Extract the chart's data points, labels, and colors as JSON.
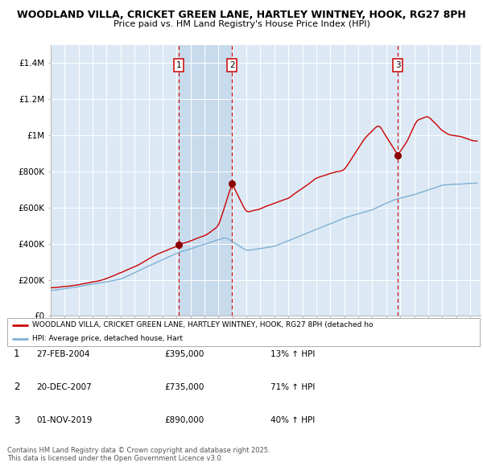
{
  "title_line1": "WOODLAND VILLA, CRICKET GREEN LANE, HARTLEY WINTNEY, HOOK, RG27 8PH",
  "title_line2": "Price paid vs. HM Land Registry's House Price Index (HPI)",
  "background_color": "#ffffff",
  "plot_bg_color": "#dce9f5",
  "grid_color": "#ffffff",
  "red_line_color": "#cc0000",
  "blue_line_color": "#7eb0d4",
  "sale_marker_color": "#8b0000",
  "sale_dashed_color": "#cc0000",
  "ylim": [
    0,
    1500000
  ],
  "yticks": [
    0,
    200000,
    400000,
    600000,
    800000,
    1000000,
    1200000,
    1400000
  ],
  "ytick_labels": [
    "£0",
    "£200K",
    "£400K",
    "£600K",
    "£800K",
    "£1M",
    "£1.2M",
    "£1.4M"
  ],
  "year_start": 1995,
  "year_end": 2025,
  "sale1_year": 2004.15,
  "sale1_price": 395000,
  "sale2_year": 2007.97,
  "sale2_price": 735000,
  "sale3_year": 2019.83,
  "sale3_price": 890000,
  "legend_red_label": "WOODLAND VILLA, CRICKET GREEN LANE, HARTLEY WINTNEY, HOOK, RG27 8PH (detached ho",
  "legend_blue_label": "HPI: Average price, detached house, Hart",
  "table_entries": [
    {
      "num": "1",
      "date": "27-FEB-2004",
      "price": "£395,000",
      "change": "13% ↑ HPI"
    },
    {
      "num": "2",
      "date": "20-DEC-2007",
      "price": "£735,000",
      "change": "71% ↑ HPI"
    },
    {
      "num": "3",
      "date": "01-NOV-2019",
      "price": "£890,000",
      "change": "40% ↑ HPI"
    }
  ],
  "footer_text": "Contains HM Land Registry data © Crown copyright and database right 2025.\nThis data is licensed under the Open Government Licence v3.0."
}
